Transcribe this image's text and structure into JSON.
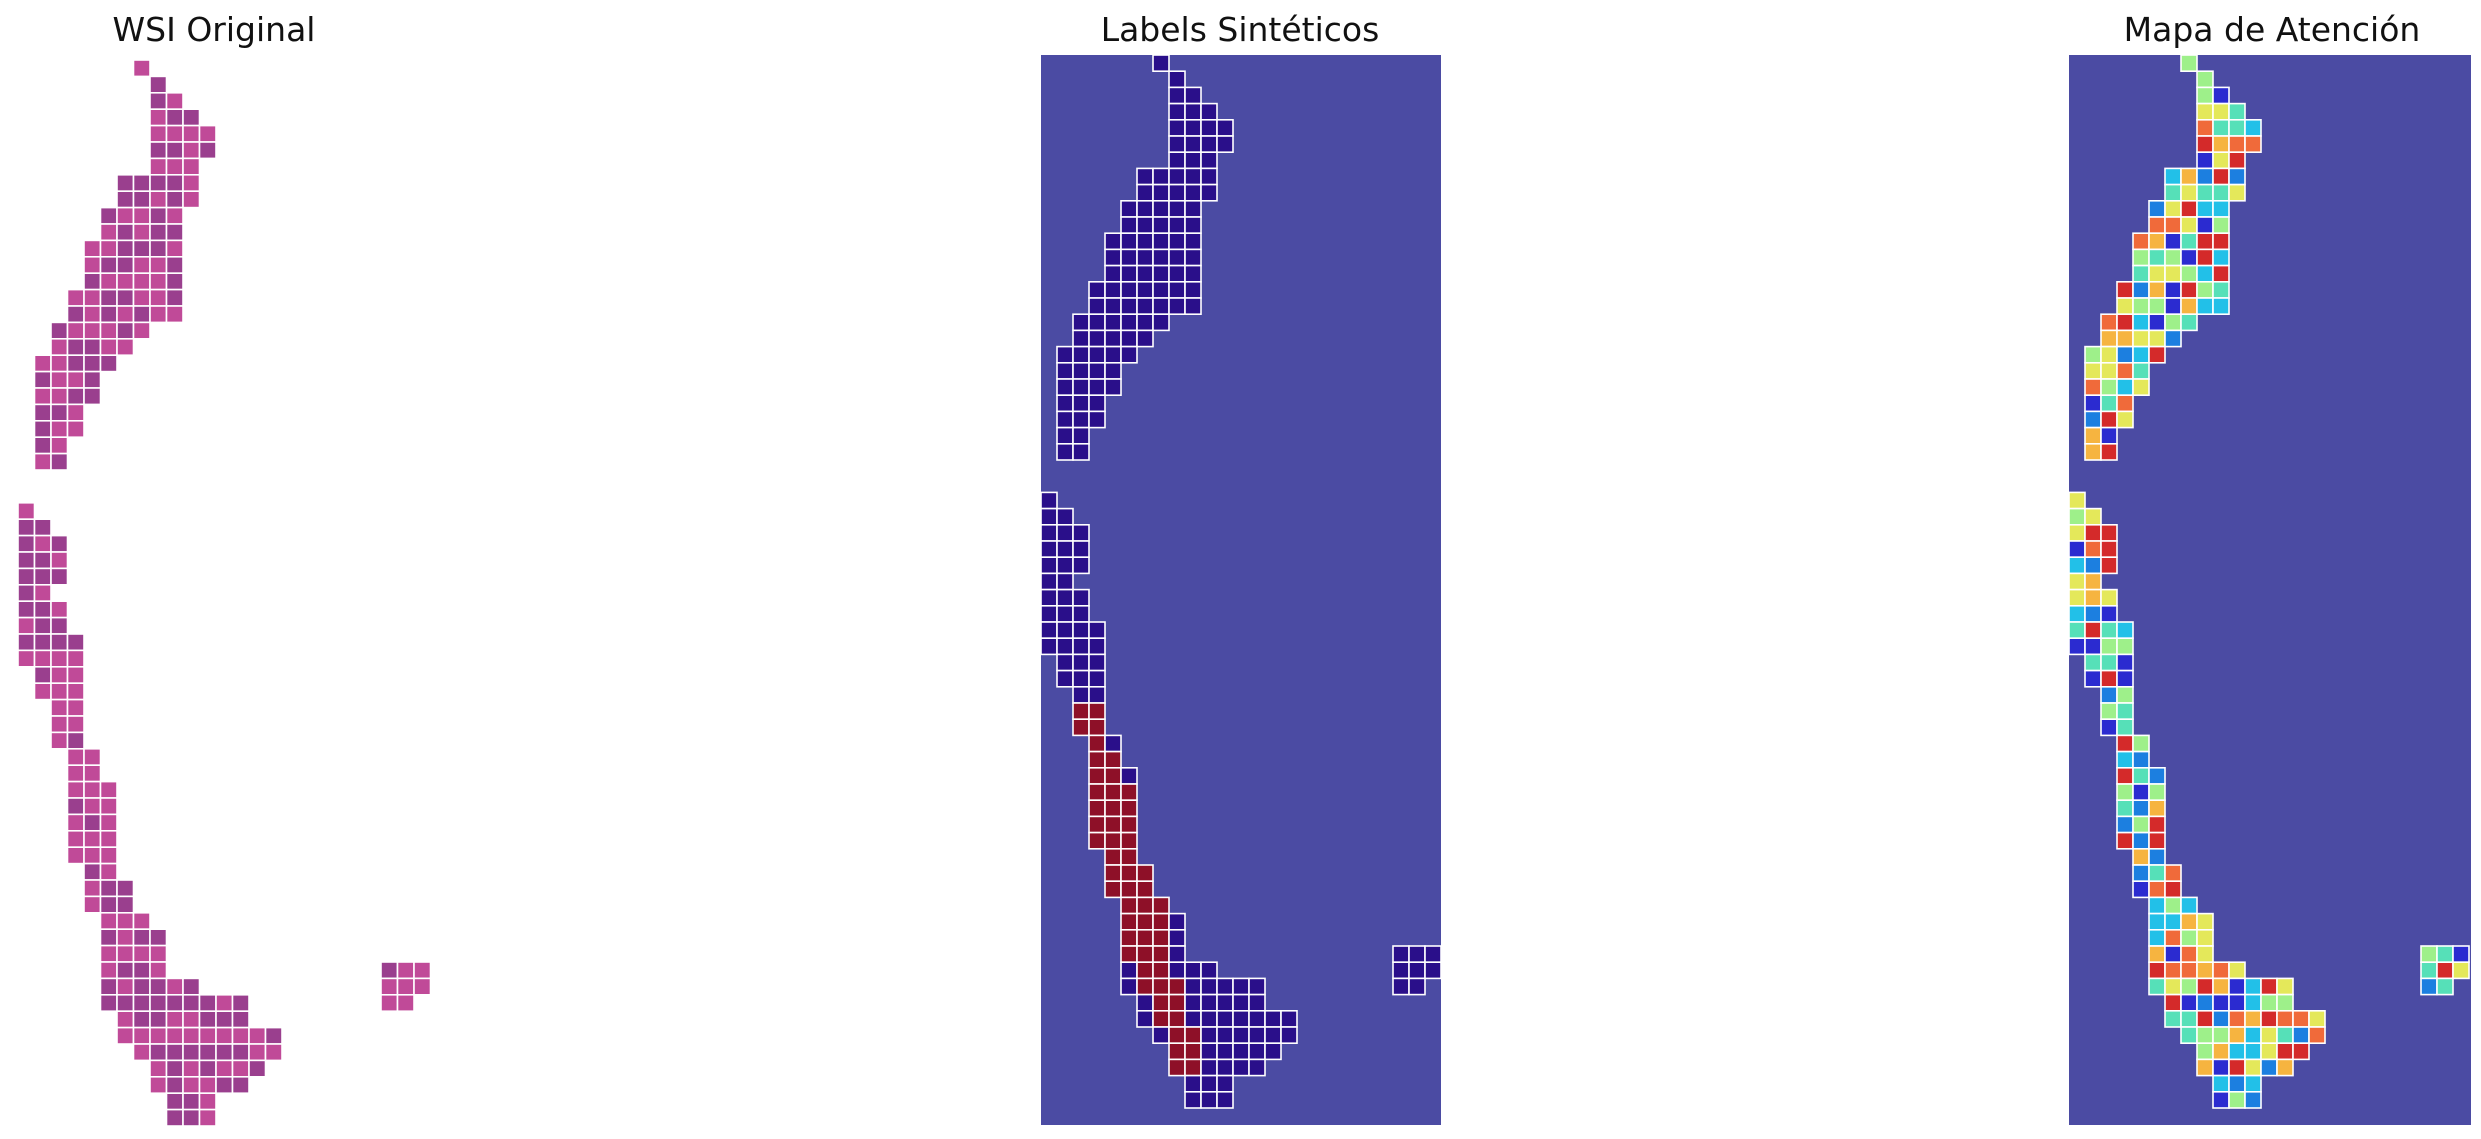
{
  "panels": [
    {
      "title": "WSI Original"
    },
    {
      "title": "Labels Sintéticos"
    },
    {
      "title": "Mapa de Atención"
    }
  ],
  "colors": {
    "background": "#4b4ba3",
    "tile_border": "#ffffff",
    "tissue_magenta": "#c04a98",
    "tissue_purple": "#9a3f8e",
    "label_negative": "#2a0f8a",
    "label_positive": "#8e1028"
  }
}
